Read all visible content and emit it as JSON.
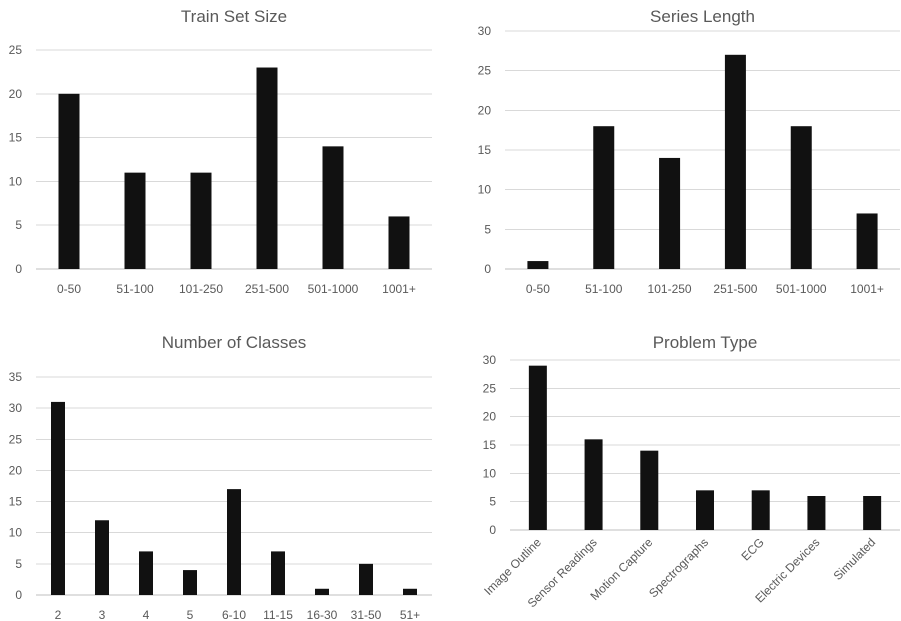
{
  "colors": {
    "bar": "#111111",
    "grid": "#d9d9d9",
    "text": "#595959"
  },
  "chart_data": [
    {
      "type": "bar",
      "title": "Train Set Size",
      "categories": [
        "0-50",
        "51-100",
        "101-250",
        "251-500",
        "501-1000",
        "1001+"
      ],
      "values": [
        20,
        11,
        11,
        23,
        14,
        6
      ],
      "ylim": [
        0,
        25
      ],
      "yticks": [
        0,
        5,
        10,
        15,
        20,
        25
      ],
      "grid": true,
      "legend": "none"
    },
    {
      "type": "bar",
      "title": "Series Length",
      "categories": [
        "0-50",
        "51-100",
        "101-250",
        "251-500",
        "501-1000",
        "1001+"
      ],
      "values": [
        1,
        18,
        14,
        27,
        18,
        7
      ],
      "ylim": [
        0,
        30
      ],
      "yticks": [
        0,
        5,
        10,
        15,
        20,
        25,
        30
      ],
      "grid": true,
      "legend": "none"
    },
    {
      "type": "bar",
      "title": "Number of Classes",
      "categories": [
        "2",
        "3",
        "4",
        "5",
        "6-10",
        "11-15",
        "16-30",
        "31-50",
        "51+"
      ],
      "values": [
        31,
        12,
        7,
        4,
        17,
        7,
        1,
        5,
        1
      ],
      "ylim": [
        0,
        35
      ],
      "yticks": [
        0,
        5,
        10,
        15,
        20,
        25,
        30,
        35
      ],
      "grid": true,
      "legend": "none"
    },
    {
      "type": "bar",
      "title": "Problem Type",
      "categories": [
        "Image Outline",
        "Sensor Readings",
        "Motion Capture",
        "Spectrographs",
        "ECG",
        "Electric Devices",
        "Simulated"
      ],
      "values": [
        29,
        16,
        14,
        7,
        7,
        6,
        6
      ],
      "ylim": [
        0,
        30
      ],
      "yticks": [
        0,
        5,
        10,
        15,
        20,
        25,
        30
      ],
      "grid": true,
      "legend": "none",
      "rotated_labels": true
    }
  ]
}
